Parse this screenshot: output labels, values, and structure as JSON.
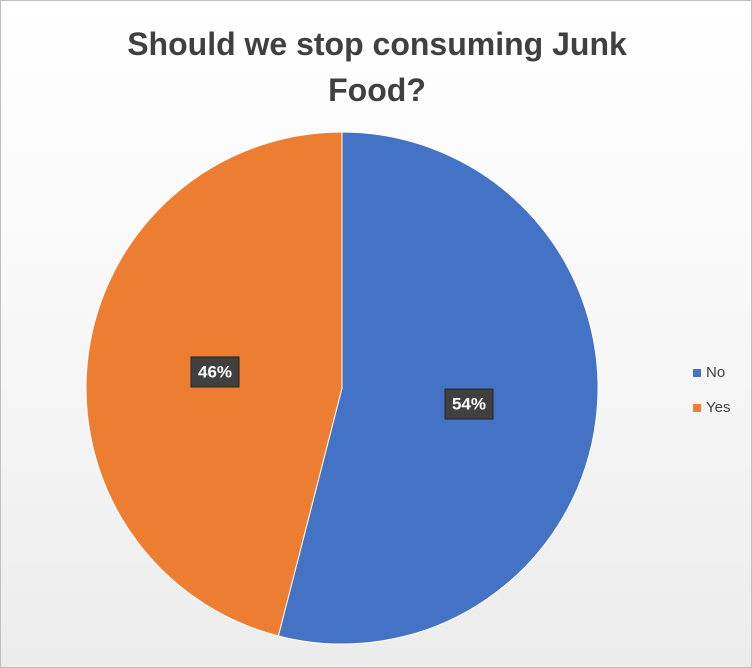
{
  "chart_data": {
    "type": "pie",
    "title": "Should we stop consuming Junk Food?",
    "categories": [
      "No",
      "Yes"
    ],
    "values": [
      54,
      46
    ],
    "value_labels": [
      "54%",
      "46%"
    ],
    "colors": [
      "#4472c4",
      "#ed7d31"
    ],
    "legend": "right"
  }
}
